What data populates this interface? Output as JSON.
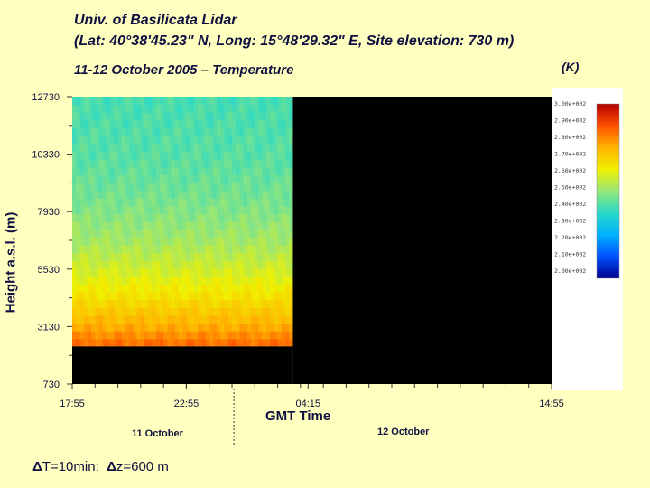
{
  "header": {
    "line1": "Univ. of Basilicata Lidar",
    "line2": "(Lat: 40°38'45.23\" N, Long: 15°48'29.32\" E, Site elevation: 730 m)",
    "line3": "11-12 October 2005 – Temperature",
    "units": "(K)"
  },
  "footer": {
    "resolution_time": "T=10min;",
    "resolution_z": "z=600 m",
    "delta_symbol": "Δ"
  },
  "chart_data": {
    "type": "heatmap",
    "title": "11-12 October 2005 – Temperature",
    "xlabel": "GMT Time",
    "ylabel": "Height a.s.l. (m)",
    "y_ticks": [
      "730",
      "3130",
      "5530",
      "7930",
      "10330",
      "12730"
    ],
    "y_tick_values": [
      730,
      3130,
      5530,
      7930,
      10330,
      12730
    ],
    "ylim": [
      730,
      12730
    ],
    "x_ticks": [
      "17:55",
      "22:55",
      "04:15",
      "14:55"
    ],
    "x_tick_minutes": [
      0,
      300,
      620,
      1260
    ],
    "xlim_minutes": [
      0,
      1260
    ],
    "data_end_minutes": 580,
    "data_bottom_height": 2300,
    "day_labels": [
      "11 October",
      "12 October"
    ],
    "day_break_minutes": 425,
    "colorbar": {
      "label": "(K)",
      "min": 200,
      "max": 300,
      "tick_labels": [
        "2.00e+002",
        "2.10e+002",
        "2.20e+002",
        "2.30e+002",
        "2.40e+002",
        "2.50e+002",
        "2.60e+002",
        "2.70e+002",
        "2.80e+002",
        "2.90e+002",
        "3.00e+002"
      ],
      "colors": [
        "#00008c",
        "#0050ff",
        "#00b4ff",
        "#28d8c8",
        "#96e678",
        "#f0f000",
        "#ffb400",
        "#ff5000",
        "#b40000"
      ]
    },
    "profile": {
      "heights": [
        2300,
        3130,
        4330,
        5530,
        6730,
        7930,
        9130,
        10330,
        11530,
        12730
      ],
      "temperature_K": [
        285,
        276,
        266,
        258,
        252,
        248,
        245,
        243,
        242,
        241
      ]
    },
    "colors": {
      "no_data": "#000000",
      "plot_bg": "#ffffff"
    }
  }
}
